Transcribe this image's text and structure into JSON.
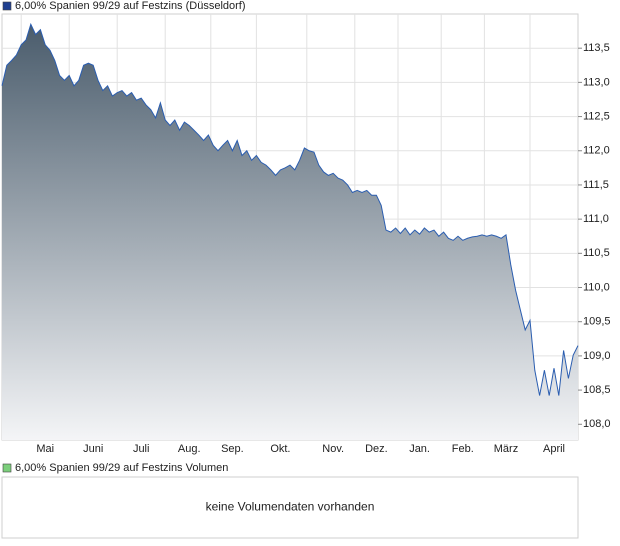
{
  "chart_data": [
    {
      "type": "area",
      "title": "6,00% Spanien 99/29 auf Festzins (Düsseldorf)",
      "legend_color": "#1f3f8f",
      "color": "#2a5db0",
      "fill_top": "#4a5c6c",
      "fill_bottom": "#f4f5f7",
      "grid": true,
      "ylim": [
        107.77,
        114.0
      ],
      "yticks": [
        {
          "value": 108.0,
          "label": "108,0"
        },
        {
          "value": 108.5,
          "label": "108,5"
        },
        {
          "value": 109.0,
          "label": "109,0"
        },
        {
          "value": 109.5,
          "label": "109,5"
        },
        {
          "value": 110.0,
          "label": "110,0"
        },
        {
          "value": 110.5,
          "label": "110,5"
        },
        {
          "value": 111.0,
          "label": "111,0"
        },
        {
          "value": 111.5,
          "label": "111,5"
        },
        {
          "value": 112.0,
          "label": "112,0"
        },
        {
          "value": 112.5,
          "label": "112,5"
        },
        {
          "value": 113.0,
          "label": "113,0"
        },
        {
          "value": 113.5,
          "label": "113,5"
        }
      ],
      "categories": [
        null,
        null,
        null,
        null,
        null,
        null,
        null,
        null,
        null,
        "Mai",
        null,
        null,
        null,
        null,
        null,
        null,
        null,
        null,
        null,
        "Juni",
        null,
        null,
        null,
        null,
        null,
        null,
        null,
        null,
        null,
        "Juli",
        null,
        null,
        null,
        null,
        null,
        null,
        null,
        null,
        null,
        "Aug.",
        null,
        null,
        null,
        null,
        null,
        null,
        null,
        null,
        "Sep.",
        null,
        null,
        null,
        null,
        null,
        null,
        null,
        null,
        null,
        "Okt.",
        null,
        null,
        null,
        null,
        null,
        null,
        null,
        null,
        null,
        null,
        "Nov.",
        null,
        null,
        null,
        null,
        null,
        null,
        null,
        null,
        "Dez.",
        null,
        null,
        null,
        null,
        null,
        null,
        null,
        null,
        "Jan.",
        null,
        null,
        null,
        null,
        null,
        null,
        null,
        null,
        "Feb.",
        null,
        null,
        null,
        null,
        null,
        null,
        null,
        null,
        "März",
        null,
        null,
        null,
        null,
        null,
        null,
        null,
        null,
        null,
        "April",
        null,
        null,
        null,
        null,
        null
      ],
      "values": [
        112.95,
        113.25,
        113.32,
        113.4,
        113.55,
        113.62,
        113.85,
        113.7,
        113.77,
        113.55,
        113.47,
        113.32,
        113.1,
        113.03,
        113.1,
        112.95,
        113.03,
        113.25,
        113.28,
        113.25,
        113.03,
        112.88,
        112.95,
        112.8,
        112.85,
        112.88,
        112.8,
        112.85,
        112.74,
        112.77,
        112.67,
        112.6,
        112.48,
        112.7,
        112.45,
        112.37,
        112.45,
        112.3,
        112.42,
        112.37,
        112.3,
        112.23,
        112.15,
        112.23,
        112.08,
        112.0,
        112.08,
        112.15,
        112.0,
        112.15,
        111.93,
        112.0,
        111.86,
        111.93,
        111.83,
        111.79,
        111.72,
        111.64,
        111.72,
        111.75,
        111.79,
        111.72,
        111.86,
        112.04,
        112.0,
        111.98,
        111.79,
        111.69,
        111.64,
        111.67,
        111.6,
        111.57,
        111.5,
        111.39,
        111.42,
        111.39,
        111.42,
        111.35,
        111.35,
        111.2,
        110.84,
        110.81,
        110.87,
        110.79,
        110.87,
        110.77,
        110.84,
        110.78,
        110.87,
        110.81,
        110.84,
        110.75,
        110.81,
        110.72,
        110.69,
        110.75,
        110.69,
        110.72,
        110.74,
        110.75,
        110.77,
        110.75,
        110.77,
        110.75,
        110.72,
        110.77,
        110.33,
        109.96,
        109.67,
        109.38,
        109.52,
        108.79,
        108.42,
        108.79,
        108.42,
        108.82,
        108.42,
        109.08,
        108.67,
        109.01,
        109.15
      ]
    },
    {
      "type": "bar",
      "title": "6,00% Spanien 99/29 auf Festzins Volumen",
      "legend_color": "#7ccf7c",
      "annotation": "keine Volumendaten vorhanden"
    }
  ]
}
